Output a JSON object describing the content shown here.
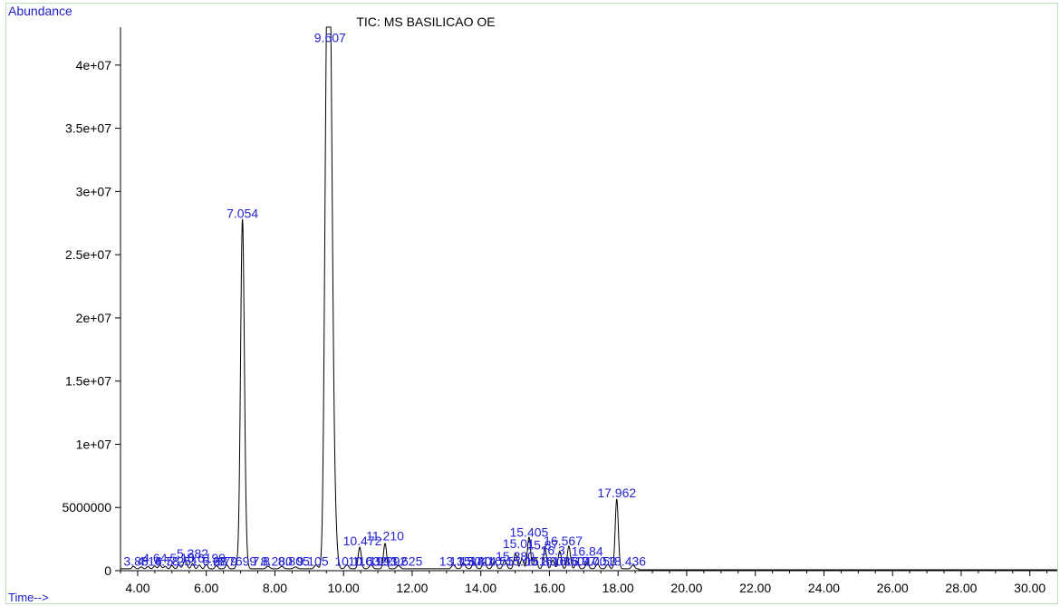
{
  "chart_data": {
    "type": "line",
    "title": "TIC: MS BASILICAO OE",
    "ylabel": "Abundance",
    "xlabel": "Time-->",
    "xlim": [
      3.5,
      30.8
    ],
    "ylim": [
      0,
      43000000
    ],
    "x_ticks": [
      4.0,
      6.0,
      8.0,
      10.0,
      12.0,
      14.0,
      16.0,
      18.0,
      20.0,
      22.0,
      24.0,
      26.0,
      28.0,
      30.0
    ],
    "x_tick_labels": [
      "4.00",
      "6.00",
      "8.00",
      "10.00",
      "12.00",
      "14.00",
      "16.00",
      "18.00",
      "20.00",
      "22.00",
      "24.00",
      "26.00",
      "28.00",
      "30.00"
    ],
    "y_ticks": [
      0,
      5000000,
      10000000,
      15000000,
      20000000,
      25000000,
      30000000,
      35000000,
      40000000
    ],
    "y_tick_labels": [
      "0",
      "5000000",
      "1e+07",
      "1.5e+07",
      "2e+07",
      "2.5e+07",
      "3e+07",
      "3.5e+07",
      "4e+07"
    ],
    "grid": false,
    "series": [
      {
        "color": "#000000",
        "baseline": 150000,
        "peaks": [
          {
            "rt": 3.88,
            "height": 200000,
            "width": 0.04
          },
          {
            "rt": 4.1,
            "height": 150000,
            "width": 0.04
          },
          {
            "rt": 4.3,
            "height": 180000,
            "width": 0.04
          },
          {
            "rt": 4.5,
            "height": 220000,
            "width": 0.04
          },
          {
            "rt": 4.65,
            "height": 300000,
            "width": 0.04
          },
          {
            "rt": 4.8,
            "height": 200000,
            "width": 0.04
          },
          {
            "rt": 5.0,
            "height": 250000,
            "width": 0.04
          },
          {
            "rt": 5.2,
            "height": 300000,
            "width": 0.04
          },
          {
            "rt": 5.382,
            "height": 700000,
            "width": 0.05
          },
          {
            "rt": 5.6,
            "height": 400000,
            "width": 0.04
          },
          {
            "rt": 5.8,
            "height": 300000,
            "width": 0.04
          },
          {
            "rt": 6.0,
            "height": 350000,
            "width": 0.04
          },
          {
            "rt": 6.3,
            "height": 250000,
            "width": 0.04
          },
          {
            "rt": 6.6,
            "height": 300000,
            "width": 0.04
          },
          {
            "rt": 6.9,
            "height": 300000,
            "width": 0.04
          },
          {
            "rt": 7.054,
            "height": 27500000,
            "width": 0.055
          },
          {
            "rt": 7.15,
            "height": 800000,
            "width": 0.05
          },
          {
            "rt": 7.8,
            "height": 200000,
            "width": 0.05
          },
          {
            "rt": 8.2,
            "height": 200000,
            "width": 0.05
          },
          {
            "rt": 8.6,
            "height": 150000,
            "width": 0.05
          },
          {
            "rt": 9.2,
            "height": 300000,
            "width": 0.05
          },
          {
            "rt": 9.5,
            "height": 30000000,
            "width": 0.06
          },
          {
            "rt": 9.607,
            "height": 42000000,
            "width": 0.07
          },
          {
            "rt": 9.75,
            "height": 3000000,
            "width": 0.06
          },
          {
            "rt": 10.1,
            "height": 300000,
            "width": 0.05
          },
          {
            "rt": 10.472,
            "height": 1700000,
            "width": 0.045
          },
          {
            "rt": 10.8,
            "height": 300000,
            "width": 0.05
          },
          {
            "rt": 11.21,
            "height": 2000000,
            "width": 0.045
          },
          {
            "rt": 11.6,
            "height": 250000,
            "width": 0.05
          },
          {
            "rt": 13.2,
            "height": 300000,
            "width": 0.05
          },
          {
            "rt": 13.5,
            "height": 400000,
            "width": 0.05
          },
          {
            "rt": 13.8,
            "height": 450000,
            "width": 0.05
          },
          {
            "rt": 14.1,
            "height": 500000,
            "width": 0.05
          },
          {
            "rt": 14.4,
            "height": 600000,
            "width": 0.05
          },
          {
            "rt": 14.7,
            "height": 700000,
            "width": 0.05
          },
          {
            "rt": 15.01,
            "height": 1200000,
            "width": 0.045
          },
          {
            "rt": 15.2,
            "height": 800000,
            "width": 0.045
          },
          {
            "rt": 15.405,
            "height": 2500000,
            "width": 0.045
          },
          {
            "rt": 15.6,
            "height": 900000,
            "width": 0.045
          },
          {
            "rt": 15.87,
            "height": 1600000,
            "width": 0.045
          },
          {
            "rt": 16.1,
            "height": 700000,
            "width": 0.045
          },
          {
            "rt": 16.3,
            "height": 1400000,
            "width": 0.045
          },
          {
            "rt": 16.567,
            "height": 1800000,
            "width": 0.045
          },
          {
            "rt": 16.8,
            "height": 600000,
            "width": 0.045
          },
          {
            "rt": 17.1,
            "height": 500000,
            "width": 0.045
          },
          {
            "rt": 17.4,
            "height": 400000,
            "width": 0.045
          },
          {
            "rt": 17.7,
            "height": 350000,
            "width": 0.045
          },
          {
            "rt": 17.962,
            "height": 5500000,
            "width": 0.045
          },
          {
            "rt": 18.436,
            "height": 300000,
            "width": 0.045
          }
        ]
      }
    ],
    "peak_labels": [
      {
        "text": "9.607",
        "x": 9.607,
        "y": 41800000
      },
      {
        "text": "7.054",
        "x": 7.054,
        "y": 27900000
      },
      {
        "text": "17.962",
        "x": 17.962,
        "y": 5800000
      },
      {
        "text": "10.472",
        "x": 10.55,
        "y": 2000000
      },
      {
        "text": "11.210",
        "x": 11.21,
        "y": 2400000
      },
      {
        "text": "15.405",
        "x": 15.405,
        "y": 2700000
      },
      {
        "text": "15.01",
        "x": 15.1,
        "y": 1800000
      },
      {
        "text": "15.87",
        "x": 15.8,
        "y": 1700000
      },
      {
        "text": "16.567",
        "x": 16.4,
        "y": 2000000
      },
      {
        "text": "16.3",
        "x": 16.1,
        "y": 1250000
      },
      {
        "text": "16.84",
        "x": 17.1,
        "y": 1200000
      },
      {
        "text": "15.380",
        "x": 15.0,
        "y": 800000
      },
      {
        "text": "5.382",
        "x": 5.6,
        "y": 1000000
      },
      {
        "text": "4.64",
        "x": 4.5,
        "y": 650000
      },
      {
        "text": "5.10",
        "x": 5.3,
        "y": 650000
      },
      {
        "text": "5.6199",
        "x": 6.0,
        "y": 650000
      },
      {
        "text": "3.88",
        "x": 3.95,
        "y": 400000
      },
      {
        "text": "4.16",
        "x": 4.35,
        "y": 400000
      },
      {
        "text": "4.78",
        "x": 4.85,
        "y": 400000
      },
      {
        "text": "5.251",
        "x": 5.3,
        "y": 400000
      },
      {
        "text": "6.79",
        "x": 6.55,
        "y": 400000
      },
      {
        "text": "6.28",
        "x": 6.25,
        "y": 400000
      },
      {
        "text": "6.7699",
        "x": 6.9,
        "y": 400000
      },
      {
        "text": "7.8",
        "x": 7.6,
        "y": 400000
      },
      {
        "text": "8.280",
        "x": 8.05,
        "y": 400000
      },
      {
        "text": "8.805",
        "x": 8.55,
        "y": 400000
      },
      {
        "text": "9.105",
        "x": 9.1,
        "y": 400000
      },
      {
        "text": "10.1",
        "x": 10.1,
        "y": 400000
      },
      {
        "text": "10.632",
        "x": 10.7,
        "y": 400000
      },
      {
        "text": "10.993",
        "x": 11.0,
        "y": 400000
      },
      {
        "text": "11.292",
        "x": 11.3,
        "y": 400000
      },
      {
        "text": "11.625",
        "x": 11.75,
        "y": 400000
      },
      {
        "text": "13.15",
        "x": 13.25,
        "y": 400000
      },
      {
        "text": "13.50",
        "x": 13.55,
        "y": 400000
      },
      {
        "text": "13.80",
        "x": 13.85,
        "y": 400000
      },
      {
        "text": "14.10",
        "x": 14.15,
        "y": 400000
      },
      {
        "text": "14.55",
        "x": 14.5,
        "y": 400000
      },
      {
        "text": "15.05",
        "x": 15.2,
        "y": 400000
      },
      {
        "text": "15.80",
        "x": 15.75,
        "y": 400000
      },
      {
        "text": "16.08",
        "x": 16.15,
        "y": 400000
      },
      {
        "text": "16.50",
        "x": 16.55,
        "y": 400000
      },
      {
        "text": "16.97",
        "x": 16.9,
        "y": 400000
      },
      {
        "text": "17.00",
        "x": 17.2,
        "y": 400000
      },
      {
        "text": "17.53",
        "x": 17.5,
        "y": 400000
      },
      {
        "text": "18.436",
        "x": 18.25,
        "y": 400000
      }
    ]
  }
}
